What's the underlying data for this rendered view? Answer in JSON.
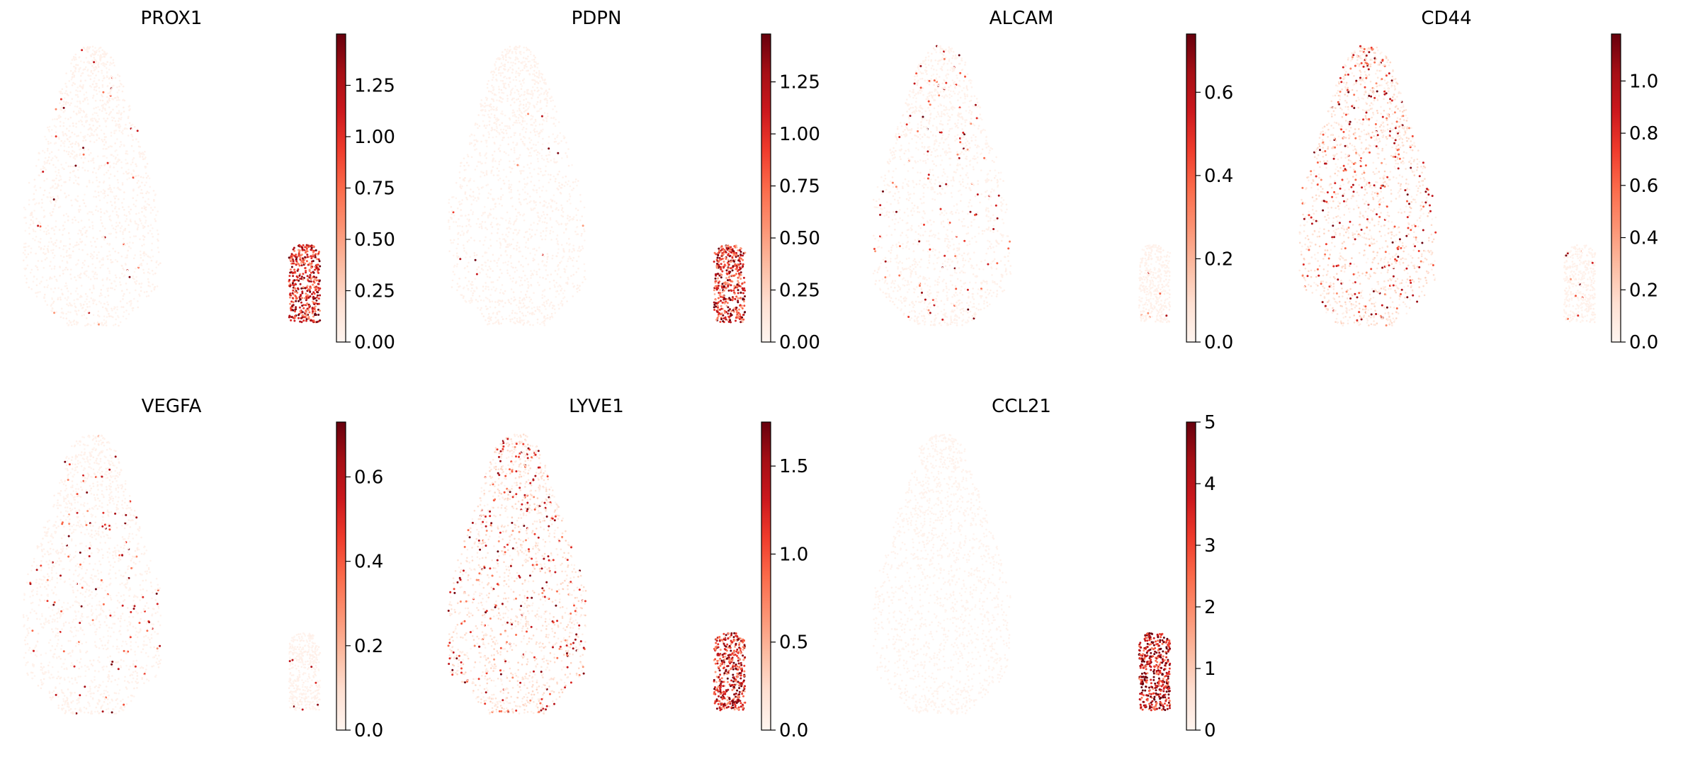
{
  "chart_data": [
    {
      "type": "scatter",
      "title": "PROX1",
      "colormap": "Reds",
      "colorbar": {
        "min": 0.0,
        "max": 1.5,
        "ticks": [
          "0.00",
          "0.25",
          "0.50",
          "0.75",
          "1.00",
          "1.25"
        ]
      },
      "series": [
        {
          "cluster": "main",
          "expression": "low",
          "sparse_highlights": "few"
        },
        {
          "cluster": "small",
          "expression": "high"
        }
      ],
      "grid": false,
      "axes": false,
      "legend": "none"
    },
    {
      "type": "scatter",
      "title": "PDPN",
      "colormap": "Reds",
      "colorbar": {
        "min": 0.0,
        "max": 1.48,
        "ticks": [
          "0.00",
          "0.25",
          "0.50",
          "0.75",
          "1.00",
          "1.25"
        ]
      },
      "series": [
        {
          "cluster": "main",
          "expression": "low",
          "sparse_highlights": "few"
        },
        {
          "cluster": "small",
          "expression": "high"
        }
      ],
      "grid": false,
      "axes": false,
      "legend": "none"
    },
    {
      "type": "scatter",
      "title": "ALCAM",
      "colormap": "Reds",
      "colorbar": {
        "min": 0.0,
        "max": 0.74,
        "ticks": [
          "0.0",
          "0.2",
          "0.4",
          "0.6"
        ]
      },
      "series": [
        {
          "cluster": "main",
          "expression": "low",
          "sparse_highlights": "moderate"
        },
        {
          "cluster": "small",
          "expression": "low",
          "sparse_highlights": "few"
        }
      ],
      "grid": false,
      "axes": false,
      "legend": "none"
    },
    {
      "type": "scatter",
      "title": "CD44",
      "colormap": "Reds",
      "colorbar": {
        "min": 0.0,
        "max": 1.18,
        "ticks": [
          "0.0",
          "0.2",
          "0.4",
          "0.6",
          "0.8",
          "1.0"
        ]
      },
      "series": [
        {
          "cluster": "main",
          "expression": "medium",
          "sparse_highlights": "many"
        },
        {
          "cluster": "small",
          "expression": "low",
          "sparse_highlights": "few"
        }
      ],
      "grid": false,
      "axes": false,
      "legend": "none"
    },
    {
      "type": "scatter",
      "title": "VEGFA",
      "colormap": "Reds",
      "colorbar": {
        "min": 0.0,
        "max": 0.73,
        "ticks": [
          "0.0",
          "0.2",
          "0.4",
          "0.6"
        ]
      },
      "series": [
        {
          "cluster": "main",
          "expression": "low",
          "sparse_highlights": "moderate"
        },
        {
          "cluster": "small",
          "expression": "low",
          "sparse_highlights": "few"
        }
      ],
      "grid": false,
      "axes": false,
      "legend": "none"
    },
    {
      "type": "scatter",
      "title": "LYVE1",
      "colormap": "Reds",
      "colorbar": {
        "min": 0.0,
        "max": 1.75,
        "ticks": [
          "0.0",
          "0.5",
          "1.0",
          "1.5"
        ]
      },
      "series": [
        {
          "cluster": "main",
          "expression": "medium",
          "sparse_highlights": "many"
        },
        {
          "cluster": "small",
          "expression": "high"
        }
      ],
      "grid": false,
      "axes": false,
      "legend": "none"
    },
    {
      "type": "scatter",
      "title": "CCL21",
      "colormap": "Reds",
      "colorbar": {
        "min": 0,
        "max": 5,
        "ticks": [
          "0",
          "1",
          "2",
          "3",
          "4",
          "5"
        ]
      },
      "series": [
        {
          "cluster": "main",
          "expression": "very-low",
          "sparse_highlights": "none"
        },
        {
          "cluster": "small",
          "expression": "very-high"
        }
      ],
      "grid": false,
      "axes": false,
      "legend": "none"
    }
  ]
}
